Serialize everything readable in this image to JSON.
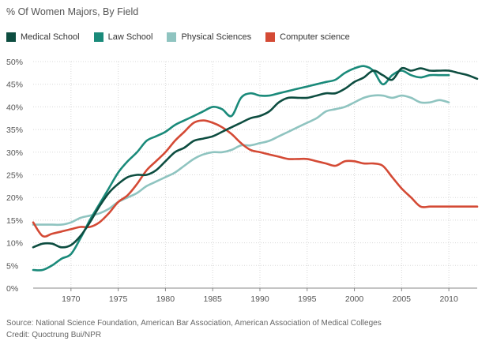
{
  "subtitle": "% Of Women Majors, By Field",
  "footer": {
    "source": "Source: National Science Foundation, American Bar Association, American Association of Medical Colleges",
    "credit": "Credit: Quoctrung Bui/NPR"
  },
  "chart_data": {
    "type": "line",
    "title": "% Of Women Majors, By Field",
    "xlabel": "",
    "ylabel": "",
    "xlim": [
      1966,
      2013
    ],
    "ylim": [
      0,
      50
    ],
    "x_ticks": [
      1970,
      1975,
      1980,
      1985,
      1990,
      1995,
      2000,
      2005,
      2010
    ],
    "y_ticks": [
      0,
      5,
      10,
      15,
      20,
      25,
      30,
      35,
      40,
      45,
      50
    ],
    "y_tick_labels": [
      "0%",
      "5%",
      "10%",
      "15%",
      "20%",
      "25%",
      "30%",
      "35%",
      "40%",
      "45%",
      "50%"
    ],
    "grid": true,
    "legend_position": "top-left",
    "series": [
      {
        "name": "Medical School",
        "color": "#0d4d40",
        "x": [
          1966,
          1967,
          1968,
          1969,
          1970,
          1971,
          1972,
          1973,
          1974,
          1975,
          1976,
          1977,
          1978,
          1979,
          1980,
          1981,
          1982,
          1983,
          1984,
          1985,
          1986,
          1987,
          1988,
          1989,
          1990,
          1991,
          1992,
          1993,
          1994,
          1995,
          1996,
          1997,
          1998,
          1999,
          2000,
          2001,
          2002,
          2003,
          2004,
          2005,
          2006,
          2007,
          2008,
          2009,
          2010,
          2011,
          2012,
          2013
        ],
        "values": [
          9,
          9.8,
          9.8,
          9,
          9.5,
          11.5,
          14.5,
          18,
          21,
          23,
          24.5,
          25,
          25,
          26,
          28,
          30,
          31,
          32.5,
          33,
          33.5,
          34.5,
          35.5,
          36.5,
          37.5,
          38,
          39,
          41,
          42,
          42,
          42,
          42.5,
          43,
          43,
          44,
          45.5,
          46.5,
          48,
          47,
          46,
          48.5,
          48,
          48.5,
          48,
          48,
          48,
          47.5,
          47,
          46.2
        ]
      },
      {
        "name": "Law School",
        "color": "#1a8a7a",
        "x": [
          1966,
          1967,
          1968,
          1969,
          1970,
          1971,
          1972,
          1973,
          1974,
          1975,
          1976,
          1977,
          1978,
          1979,
          1980,
          1981,
          1982,
          1983,
          1984,
          1985,
          1986,
          1987,
          1988,
          1989,
          1990,
          1991,
          1992,
          1993,
          1994,
          1995,
          1996,
          1997,
          1998,
          1999,
          2000,
          2001,
          2002,
          2003,
          2004,
          2005,
          2006,
          2007,
          2008,
          2009,
          2010
        ],
        "values": [
          4,
          4,
          5,
          6.5,
          7.5,
          11,
          15,
          18.5,
          22,
          25.5,
          28,
          30,
          32.5,
          33.5,
          34.5,
          36,
          37,
          38,
          39,
          40,
          39.5,
          38,
          42,
          43,
          42.5,
          42.5,
          43,
          43.5,
          44,
          44.5,
          45,
          45.5,
          46,
          47.5,
          48.5,
          49,
          48,
          45,
          47,
          48,
          47,
          46.5,
          47,
          47,
          47
        ]
      },
      {
        "name": "Physical Sciences",
        "color": "#8fc4c0",
        "x": [
          1966,
          1967,
          1968,
          1969,
          1970,
          1971,
          1972,
          1973,
          1974,
          1975,
          1976,
          1977,
          1978,
          1979,
          1980,
          1981,
          1982,
          1983,
          1984,
          1985,
          1986,
          1987,
          1988,
          1989,
          1990,
          1991,
          1992,
          1993,
          1994,
          1995,
          1996,
          1997,
          1998,
          1999,
          2000,
          2001,
          2002,
          2003,
          2004,
          2005,
          2006,
          2007,
          2008,
          2009,
          2010
        ],
        "values": [
          14,
          14,
          14,
          14,
          14.5,
          15.5,
          16,
          16.5,
          17.5,
          19,
          20,
          21,
          22.5,
          23.5,
          24.5,
          25.5,
          27,
          28.5,
          29.5,
          30,
          30,
          30.5,
          31.5,
          31.5,
          32,
          32.5,
          33.5,
          34.5,
          35.5,
          36.5,
          37.5,
          39,
          39.5,
          40,
          41,
          42,
          42.5,
          42.5,
          42,
          42.5,
          42,
          41,
          41,
          41.5,
          41
        ]
      },
      {
        "name": "Computer science",
        "color": "#d44a35",
        "x": [
          1966,
          1967,
          1968,
          1969,
          1970,
          1971,
          1972,
          1973,
          1974,
          1975,
          1976,
          1977,
          1978,
          1979,
          1980,
          1981,
          1982,
          1983,
          1984,
          1985,
          1986,
          1987,
          1988,
          1989,
          1990,
          1991,
          1992,
          1993,
          1994,
          1995,
          1996,
          1997,
          1998,
          1999,
          2000,
          2001,
          2002,
          2003,
          2004,
          2005,
          2006,
          2007,
          2008,
          2009,
          2010,
          2011,
          2012,
          2013
        ],
        "values": [
          14.5,
          11.5,
          12,
          12.5,
          13,
          13.5,
          13.5,
          14.5,
          16.5,
          19,
          20.5,
          23,
          26,
          28,
          30,
          32.5,
          34.5,
          36.5,
          37,
          36.5,
          35.5,
          34,
          32,
          30.5,
          30,
          29.5,
          29,
          28.5,
          28.5,
          28.5,
          28,
          27.5,
          27,
          28,
          28,
          27.5,
          27.5,
          27,
          24.5,
          22,
          20,
          18,
          18,
          18,
          18,
          18,
          18,
          18
        ]
      }
    ]
  }
}
